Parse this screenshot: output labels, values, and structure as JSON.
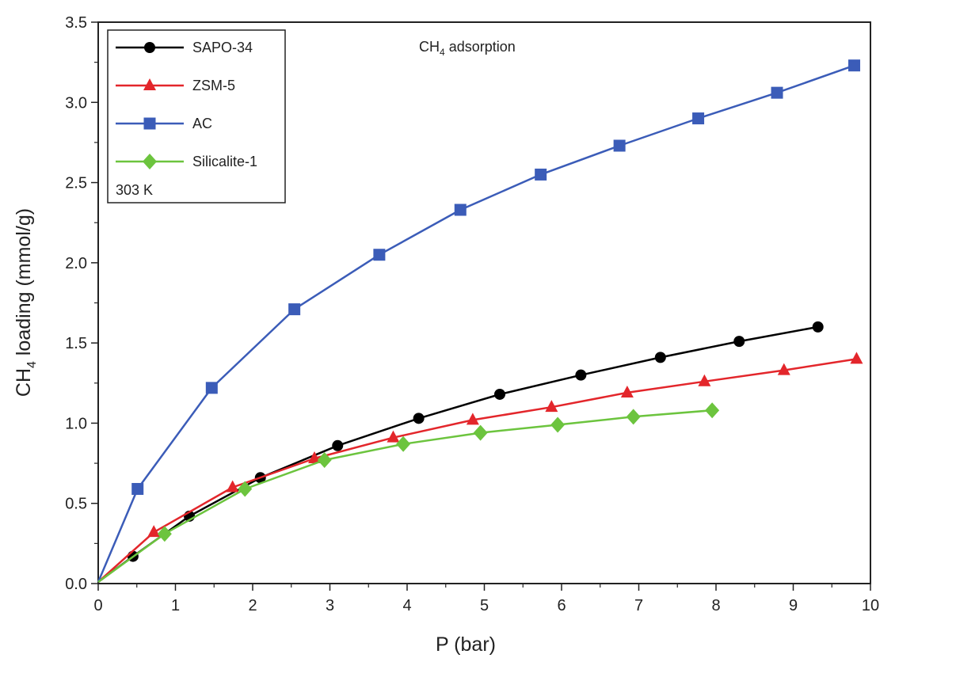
{
  "chart_data": {
    "type": "line",
    "title": "",
    "xlabel": "P (bar)",
    "ylabel": {
      "prefix": "CH",
      "subscript": "4",
      "suffix": " loading (mmol/g)"
    },
    "xlim": [
      0,
      10
    ],
    "ylim": [
      0,
      3.5
    ],
    "xticks": [
      "0",
      "1",
      "2",
      "3",
      "4",
      "5",
      "6",
      "7",
      "8",
      "9",
      "10"
    ],
    "yticks": [
      "0.0",
      "0.5",
      "1.0",
      "1.5",
      "2.0",
      "2.5",
      "3.0",
      "3.5"
    ],
    "grid": false,
    "legend_position": "top-left",
    "annotation": {
      "prefix": "CH",
      "subscript": "4",
      "suffix": " adsorption"
    },
    "legend_note": "303 K",
    "series": [
      {
        "name": "SAPO-34",
        "color": "#000000",
        "marker": "circle",
        "x": [
          0,
          0.45,
          1.18,
          2.1,
          3.1,
          4.15,
          5.2,
          6.25,
          7.28,
          8.3,
          9.32
        ],
        "y": [
          0.01,
          0.17,
          0.42,
          0.66,
          0.86,
          1.03,
          1.18,
          1.3,
          1.41,
          1.51,
          1.6
        ]
      },
      {
        "name": "ZSM-5",
        "color": "#e3262b",
        "marker": "triangle",
        "x": [
          0,
          0.72,
          1.74,
          2.8,
          3.82,
          4.85,
          5.87,
          6.85,
          7.85,
          8.88,
          9.82
        ],
        "y": [
          0.01,
          0.32,
          0.6,
          0.78,
          0.91,
          1.02,
          1.1,
          1.19,
          1.26,
          1.33,
          1.4
        ]
      },
      {
        "name": "AC",
        "color": "#3b5cb8",
        "marker": "square",
        "x": [
          0,
          0.51,
          1.47,
          2.54,
          3.64,
          4.69,
          5.73,
          6.75,
          7.77,
          8.79,
          9.79
        ],
        "y": [
          0.01,
          0.59,
          1.22,
          1.71,
          2.05,
          2.33,
          2.55,
          2.73,
          2.9,
          3.06,
          3.23
        ]
      },
      {
        "name": "Silicalite-1",
        "color": "#6cc43e",
        "marker": "diamond",
        "x": [
          0,
          0.86,
          1.9,
          2.93,
          3.95,
          4.95,
          5.95,
          6.93,
          7.95
        ],
        "y": [
          0.01,
          0.31,
          0.59,
          0.77,
          0.87,
          0.94,
          0.99,
          1.04,
          1.08
        ]
      }
    ]
  }
}
